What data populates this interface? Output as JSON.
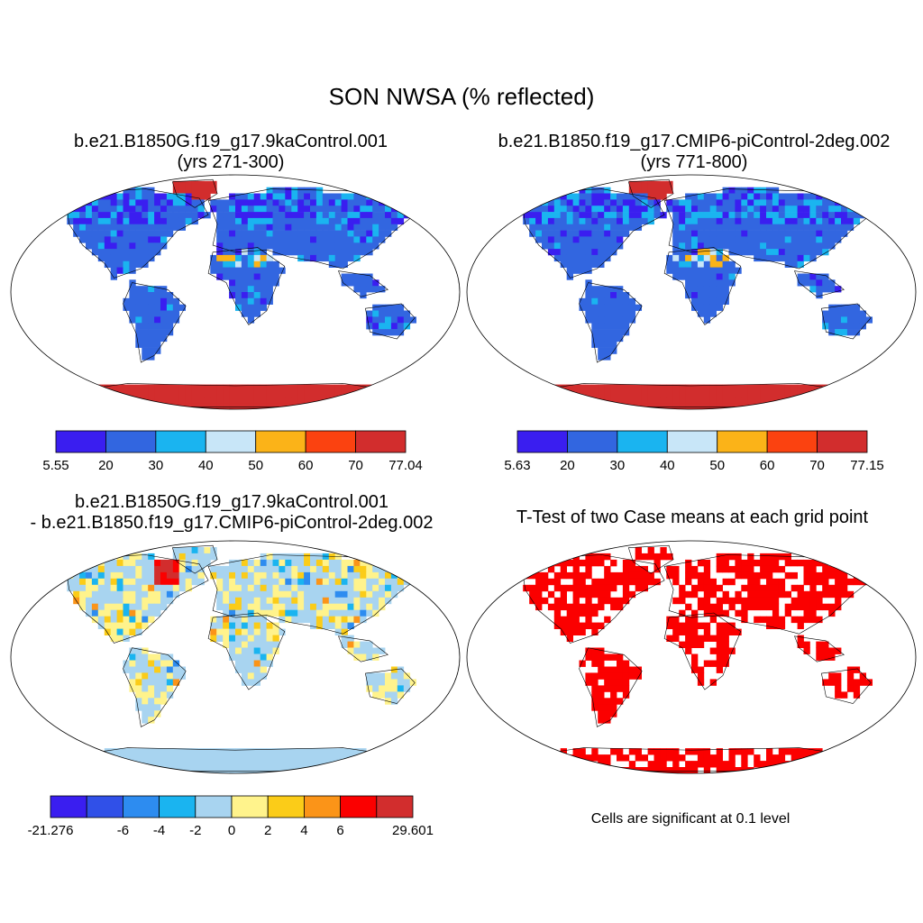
{
  "title": "SON NWSA (% reflected)",
  "panels": [
    {
      "title_lines": [
        "b.e21.B1850G.f19_g17.9kaControl.001",
        "(yrs 271-300)"
      ],
      "colorbar": {
        "colors": [
          "#3a1ef0",
          "#3266e0",
          "#1ab4f0",
          "#c8e6f8",
          "#fbb318",
          "#fb4210",
          "#d22d2d"
        ],
        "labels": [
          "5.55",
          "20",
          "30",
          "40",
          "50",
          "60",
          "70",
          "77.04"
        ]
      }
    },
    {
      "title_lines": [
        "b.e21.B1850.f19_g17.CMIP6-piControl-2deg.002",
        "(yrs 771-800)"
      ],
      "colorbar": {
        "colors": [
          "#3a1ef0",
          "#3266e0",
          "#1ab4f0",
          "#c8e6f8",
          "#fbb318",
          "#fb4210",
          "#d22d2d"
        ],
        "labels": [
          "5.63",
          "20",
          "30",
          "40",
          "50",
          "60",
          "70",
          "77.15"
        ]
      }
    },
    {
      "title_lines": [
        "b.e21.B1850G.f19_g17.9kaControl.001",
        "- b.e21.B1850.f19_g17.CMIP6-piControl-2deg.002"
      ],
      "colorbar": {
        "colors": [
          "#3a1ef0",
          "#3050e8",
          "#2d8cf0",
          "#1ab4f0",
          "#a8d4f0",
          "#fff38c",
          "#fbcc18",
          "#fb9418",
          "#fb0000",
          "#d22d2d"
        ],
        "labels": [
          "-21.276",
          "",
          "-6",
          "-4",
          "-2",
          "0",
          "2",
          "4",
          "6",
          "",
          "29.601"
        ]
      }
    },
    {
      "title_lines": [
        "T-Test of two Case means at each grid point"
      ],
      "note": "Cells are significant at 0.1 level"
    }
  ]
}
